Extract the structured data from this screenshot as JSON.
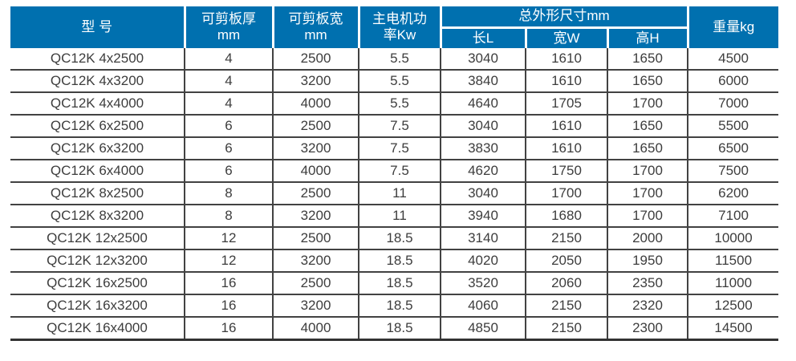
{
  "colors": {
    "header_bg": "#0070AF",
    "header_text": "#FFFFFF",
    "body_text": "#3D3D3D",
    "grid_line": "#424242"
  },
  "table": {
    "header": {
      "model": "型 号",
      "thickness": [
        "可剪板厚",
        "mm"
      ],
      "cut_width": [
        "可剪板宽",
        "mm"
      ],
      "power": [
        "主电机功",
        "率Kw"
      ],
      "dimensions_group": "总外形尺寸mm",
      "dim_length": "长L",
      "dim_width": "宽W",
      "dim_height": "高H",
      "weight": "重量kg"
    },
    "rows": [
      [
        "QC12K 4x2500",
        "4",
        "2500",
        "5.5",
        "3040",
        "1610",
        "1650",
        "4500"
      ],
      [
        "QC12K 4x3200",
        "4",
        "3200",
        "5.5",
        "3840",
        "1610",
        "1650",
        "6000"
      ],
      [
        "QC12K 4x4000",
        "4",
        "4000",
        "5.5",
        "4640",
        "1705",
        "1700",
        "7000"
      ],
      [
        "QC12K 6x2500",
        "6",
        "2500",
        "7.5",
        "3040",
        "1610",
        "1650",
        "5500"
      ],
      [
        "QC12K 6x3200",
        "6",
        "3200",
        "7.5",
        "3830",
        "1610",
        "1650",
        "6500"
      ],
      [
        "QC12K 6x4000",
        "6",
        "4000",
        "7.5",
        "4620",
        "1750",
        "1700",
        "7500"
      ],
      [
        "QC12K 8x2500",
        "8",
        "2500",
        "11",
        "3040",
        "1700",
        "1700",
        "6200"
      ],
      [
        "QC12K 8x3200",
        "8",
        "3200",
        "11",
        "3940",
        "1680",
        "1700",
        "7100"
      ],
      [
        "QC12K 12x2500",
        "12",
        "2500",
        "18.5",
        "3140",
        "2150",
        "2000",
        "10000"
      ],
      [
        "QC12K 12x3200",
        "12",
        "3200",
        "18.5",
        "4020",
        "2050",
        "1950",
        "11500"
      ],
      [
        "QC12K 16x2500",
        "16",
        "2500",
        "18.5",
        "3520",
        "2060",
        "2350",
        "11000"
      ],
      [
        "QC12K 16x3200",
        "16",
        "3200",
        "18.5",
        "4060",
        "2150",
        "2320",
        "12500"
      ],
      [
        "QC12K 16x4000",
        "16",
        "4000",
        "18.5",
        "4850",
        "2150",
        "2300",
        "14500"
      ]
    ]
  }
}
